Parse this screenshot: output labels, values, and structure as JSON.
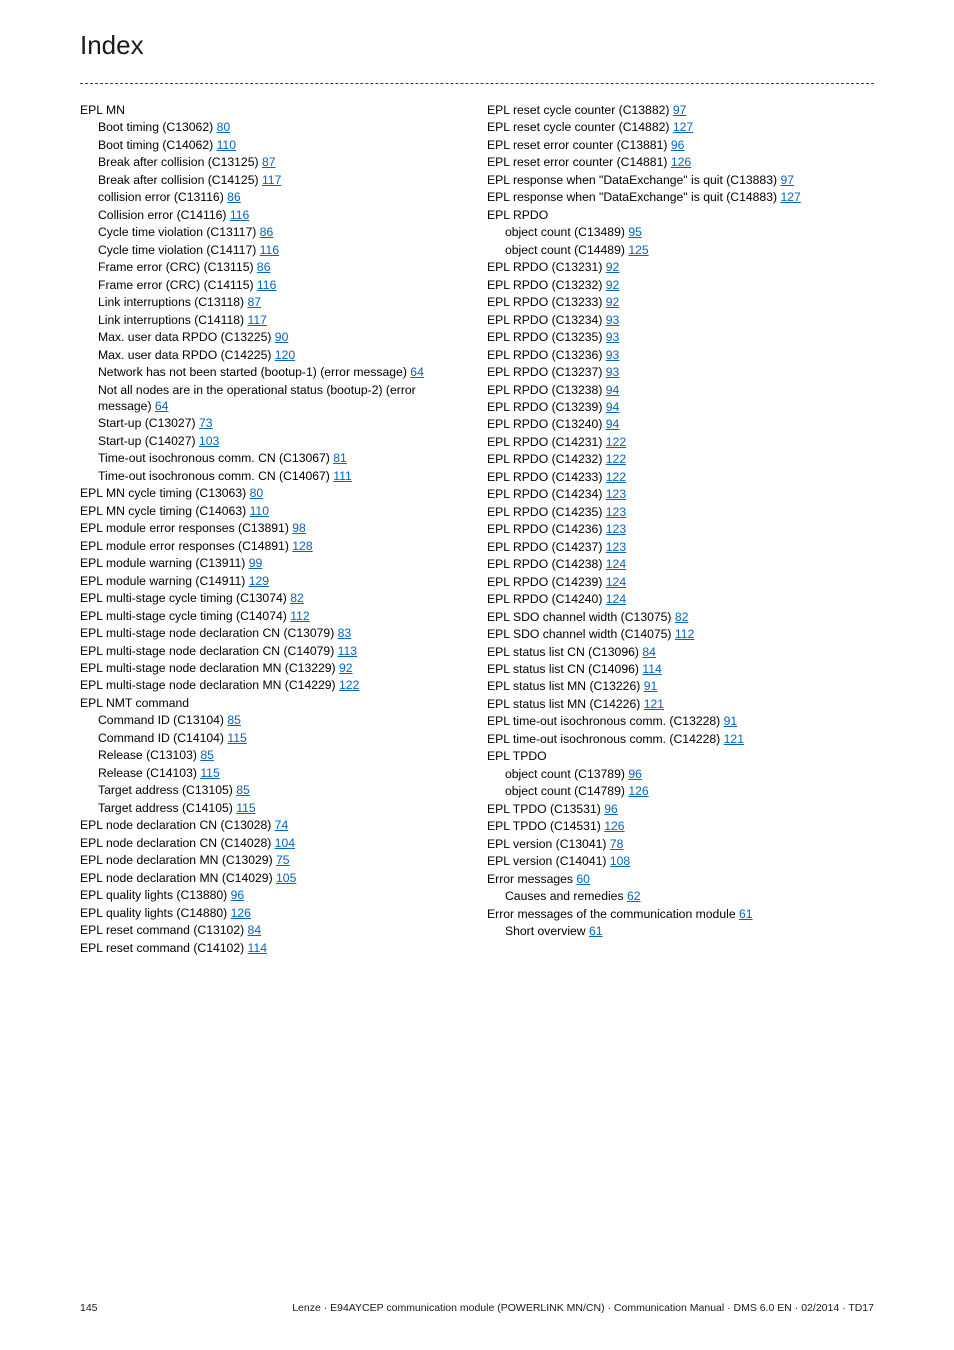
{
  "title": "Index",
  "footer": {
    "page": "145",
    "text": "Lenze · E94AYCEP communication module (POWERLINK MN/CN) · Communication Manual · DMS 6.0 EN · 02/2014 · TD17"
  },
  "link_color": "#0563c1",
  "text_color": "#000000",
  "divider_color": "#404040",
  "left_entries": [
    {
      "indent": 0,
      "text": "EPL MN",
      "page": null
    },
    {
      "indent": 1,
      "text": "Boot timing (C13062)",
      "page": "80"
    },
    {
      "indent": 1,
      "text": "Boot timing (C14062)",
      "page": "110"
    },
    {
      "indent": 1,
      "text": "Break after collision (C13125)",
      "page": "87"
    },
    {
      "indent": 1,
      "text": "Break after collision (C14125)",
      "page": "117"
    },
    {
      "indent": 1,
      "text": "collision error (C13116)",
      "page": "86"
    },
    {
      "indent": 1,
      "text": "Collision error (C14116)",
      "page": "116"
    },
    {
      "indent": 1,
      "text": "Cycle time violation (C13117)",
      "page": "86"
    },
    {
      "indent": 1,
      "text": "Cycle time violation (C14117)",
      "page": "116"
    },
    {
      "indent": 1,
      "text": "Frame error (CRC) (C13115)",
      "page": "86"
    },
    {
      "indent": 1,
      "text": "Frame error (CRC) (C14115)",
      "page": "116"
    },
    {
      "indent": 1,
      "text": "Link interruptions (C13118)",
      "page": "87"
    },
    {
      "indent": 1,
      "text": "Link interruptions (C14118)",
      "page": "117"
    },
    {
      "indent": 1,
      "text": "Max. user data RPDO (C13225)",
      "page": "90"
    },
    {
      "indent": 1,
      "text": "Max. user data RPDO (C14225)",
      "page": "120"
    },
    {
      "indent": 1,
      "text": "Network has not been started (bootup-1) (error message)",
      "page": "64"
    },
    {
      "indent": 1,
      "text": "Not all nodes are in the operational status (bootup-2) (error message)",
      "page": "64"
    },
    {
      "indent": 1,
      "text": "Start-up (C13027)",
      "page": "73"
    },
    {
      "indent": 1,
      "text": "Start-up (C14027)",
      "page": "103"
    },
    {
      "indent": 1,
      "text": "Time-out isochronous comm. CN (C13067)",
      "page": "81"
    },
    {
      "indent": 1,
      "text": "Time-out isochronous comm. CN (C14067)",
      "page": "111"
    },
    {
      "indent": 0,
      "text": "EPL MN cycle timing (C13063)",
      "page": "80"
    },
    {
      "indent": 0,
      "text": "EPL MN cycle timing (C14063)",
      "page": "110"
    },
    {
      "indent": 0,
      "text": "EPL module error responses (C13891)",
      "page": "98"
    },
    {
      "indent": 0,
      "text": "EPL module error responses (C14891)",
      "page": "128"
    },
    {
      "indent": 0,
      "text": "EPL module warning (C13911)",
      "page": "99"
    },
    {
      "indent": 0,
      "text": "EPL module warning (C14911)",
      "page": "129"
    },
    {
      "indent": 0,
      "text": "EPL multi-stage cycle timing (C13074)",
      "page": "82"
    },
    {
      "indent": 0,
      "text": "EPL multi-stage cycle timing (C14074)",
      "page": "112"
    },
    {
      "indent": 0,
      "text": "EPL multi-stage node declaration CN (C13079)",
      "page": "83"
    },
    {
      "indent": 0,
      "text": "EPL multi-stage node declaration CN (C14079)",
      "page": "113"
    },
    {
      "indent": 0,
      "text": "EPL multi-stage node declaration MN (C13229)",
      "page": "92"
    },
    {
      "indent": 0,
      "text": "EPL multi-stage node declaration MN (C14229)",
      "page": "122"
    },
    {
      "indent": 0,
      "text": "EPL NMT command",
      "page": null
    },
    {
      "indent": 1,
      "text": "Command ID (C13104)",
      "page": "85"
    },
    {
      "indent": 1,
      "text": "Command ID (C14104)",
      "page": "115"
    },
    {
      "indent": 1,
      "text": "Release (C13103)",
      "page": "85"
    },
    {
      "indent": 1,
      "text": "Release (C14103)",
      "page": "115"
    },
    {
      "indent": 1,
      "text": "Target address (C13105)",
      "page": "85"
    },
    {
      "indent": 1,
      "text": "Target address (C14105)",
      "page": "115"
    },
    {
      "indent": 0,
      "text": "EPL node declaration CN (C13028)",
      "page": "74"
    },
    {
      "indent": 0,
      "text": "EPL node declaration CN (C14028)",
      "page": "104"
    },
    {
      "indent": 0,
      "text": "EPL node declaration MN (C13029)",
      "page": "75"
    },
    {
      "indent": 0,
      "text": "EPL node declaration MN (C14029)",
      "page": "105"
    },
    {
      "indent": 0,
      "text": "EPL quality lights (C13880)",
      "page": "96"
    },
    {
      "indent": 0,
      "text": "EPL quality lights (C14880)",
      "page": "126"
    },
    {
      "indent": 0,
      "text": "EPL reset command (C13102)",
      "page": "84"
    },
    {
      "indent": 0,
      "text": "EPL reset command (C14102)",
      "page": "114"
    }
  ],
  "right_entries": [
    {
      "indent": 0,
      "text": "EPL reset cycle counter (C13882)",
      "page": "97"
    },
    {
      "indent": 0,
      "text": "EPL reset cycle counter (C14882)",
      "page": "127"
    },
    {
      "indent": 0,
      "text": "EPL reset error counter (C13881)",
      "page": "96"
    },
    {
      "indent": 0,
      "text": "EPL reset error counter (C14881)",
      "page": "126"
    },
    {
      "indent": 0,
      "text": "EPL response when \"DataExchange\" is quit (C13883)",
      "page": "97"
    },
    {
      "indent": 0,
      "text": "EPL response when \"DataExchange\" is quit (C14883)",
      "page": "127"
    },
    {
      "indent": 0,
      "text": "EPL RPDO",
      "page": null
    },
    {
      "indent": 1,
      "text": "object count (C13489)",
      "page": "95"
    },
    {
      "indent": 1,
      "text": "object count (C14489)",
      "page": "125"
    },
    {
      "indent": 0,
      "text": "EPL RPDO (C13231)",
      "page": "92"
    },
    {
      "indent": 0,
      "text": "EPL RPDO (C13232)",
      "page": "92"
    },
    {
      "indent": 0,
      "text": "EPL RPDO (C13233)",
      "page": "92"
    },
    {
      "indent": 0,
      "text": "EPL RPDO (C13234)",
      "page": "93"
    },
    {
      "indent": 0,
      "text": "EPL RPDO (C13235)",
      "page": "93"
    },
    {
      "indent": 0,
      "text": "EPL RPDO (C13236)",
      "page": "93"
    },
    {
      "indent": 0,
      "text": "EPL RPDO (C13237)",
      "page": "93"
    },
    {
      "indent": 0,
      "text": "EPL RPDO (C13238)",
      "page": "94"
    },
    {
      "indent": 0,
      "text": "EPL RPDO (C13239)",
      "page": "94"
    },
    {
      "indent": 0,
      "text": "EPL RPDO (C13240)",
      "page": "94"
    },
    {
      "indent": 0,
      "text": "EPL RPDO (C14231)",
      "page": "122"
    },
    {
      "indent": 0,
      "text": "EPL RPDO (C14232)",
      "page": "122"
    },
    {
      "indent": 0,
      "text": "EPL RPDO (C14233)",
      "page": "122"
    },
    {
      "indent": 0,
      "text": "EPL RPDO (C14234)",
      "page": "123"
    },
    {
      "indent": 0,
      "text": "EPL RPDO (C14235)",
      "page": "123"
    },
    {
      "indent": 0,
      "text": "EPL RPDO (C14236)",
      "page": "123"
    },
    {
      "indent": 0,
      "text": "EPL RPDO (C14237)",
      "page": "123"
    },
    {
      "indent": 0,
      "text": "EPL RPDO (C14238)",
      "page": "124"
    },
    {
      "indent": 0,
      "text": "EPL RPDO (C14239)",
      "page": "124"
    },
    {
      "indent": 0,
      "text": "EPL RPDO (C14240)",
      "page": "124"
    },
    {
      "indent": 0,
      "text": "EPL SDO channel width (C13075)",
      "page": "82"
    },
    {
      "indent": 0,
      "text": "EPL SDO channel width (C14075)",
      "page": "112"
    },
    {
      "indent": 0,
      "text": "EPL status list CN (C13096)",
      "page": "84"
    },
    {
      "indent": 0,
      "text": "EPL status list CN (C14096)",
      "page": "114"
    },
    {
      "indent": 0,
      "text": "EPL status list MN (C13226)",
      "page": "91"
    },
    {
      "indent": 0,
      "text": "EPL status list MN (C14226)",
      "page": "121"
    },
    {
      "indent": 0,
      "text": "EPL time-out isochronous comm. (C13228)",
      "page": "91"
    },
    {
      "indent": 0,
      "text": "EPL time-out isochronous comm. (C14228)",
      "page": "121"
    },
    {
      "indent": 0,
      "text": "EPL TPDO",
      "page": null
    },
    {
      "indent": 1,
      "text": "object count (C13789)",
      "page": "96"
    },
    {
      "indent": 1,
      "text": "object count (C14789)",
      "page": "126"
    },
    {
      "indent": 0,
      "text": "EPL TPDO (C13531)",
      "page": "96"
    },
    {
      "indent": 0,
      "text": "EPL TPDO (C14531)",
      "page": "126"
    },
    {
      "indent": 0,
      "text": "EPL version (C13041)",
      "page": "78"
    },
    {
      "indent": 0,
      "text": "EPL version (C14041)",
      "page": "108"
    },
    {
      "indent": 0,
      "text": "Error messages",
      "page": "60"
    },
    {
      "indent": 1,
      "text": "Causes and remedies",
      "page": "62"
    },
    {
      "indent": 0,
      "text": "Error messages of the communication module",
      "page": "61"
    },
    {
      "indent": 1,
      "text": "Short overview",
      "page": "61"
    }
  ]
}
